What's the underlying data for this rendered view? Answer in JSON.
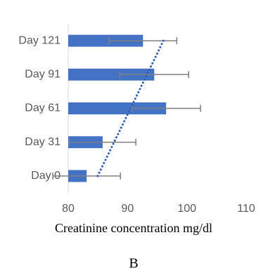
{
  "chart_data": {
    "type": "bar",
    "orientation": "horizontal",
    "categories": [
      "Day 0",
      "Day 31",
      "Day 61",
      "Day 91",
      "Day 121"
    ],
    "values": [
      83.1,
      85.8,
      96.5,
      94.5,
      92.6
    ],
    "errors": [
      5.7,
      5.6,
      5.8,
      5.8,
      5.7
    ],
    "color": "#4472c4",
    "error_color": "#7f7f7f",
    "trendline": "linear",
    "trendline_color": "#2f5eb5",
    "xlim": [
      80,
      110
    ],
    "xticks": [
      80,
      90,
      100,
      110
    ],
    "xlabel": "Creatinine concentration mg/dl",
    "panel_label": "B"
  }
}
